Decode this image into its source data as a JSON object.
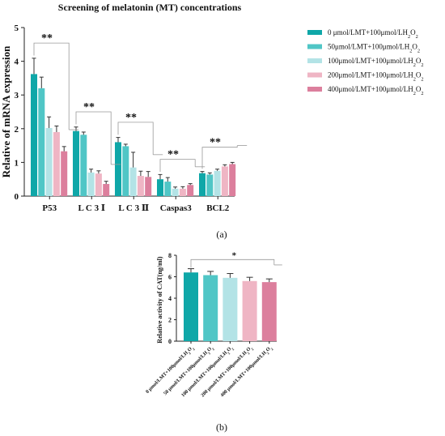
{
  "panel_labels": {
    "a": "(a)",
    "b": "(b)"
  },
  "significance": {
    "double": "**",
    "single": "*"
  },
  "chart_data": [
    {
      "id": "a",
      "type": "bar",
      "title": "Screening of melatonin (MT) concentrations",
      "xlabel": "",
      "ylabel": "Relative of mRNA expression",
      "ylim": [
        0,
        5
      ],
      "yticks": [
        "0",
        "1",
        "2",
        "3",
        "4",
        "5"
      ],
      "categories": [
        "P53",
        "L C 3 Ⅰ",
        "L C 3 Ⅱ",
        "Caspas3",
        "BCL2"
      ],
      "legend_position": "right",
      "series": [
        {
          "name": "0 μmol/LMT+100μmol/LH2O2",
          "color": "#0fa7a8",
          "values": [
            3.62,
            1.93,
            1.6,
            0.5,
            0.68
          ],
          "errors": [
            0.47,
            0.12,
            0.14,
            0.14,
            0.05
          ]
        },
        {
          "name": "50μmol/LMT+100μmol/LH2O2",
          "color": "#50c6c6",
          "values": [
            3.2,
            1.82,
            1.48,
            0.43,
            0.64
          ],
          "errors": [
            0.33,
            0.08,
            0.06,
            0.12,
            0.05
          ]
        },
        {
          "name": "100μmol/LMT+100μmol/LH2O2",
          "color": "#b3e3e6",
          "values": [
            2.02,
            0.7,
            0.85,
            0.22,
            0.75
          ],
          "errors": [
            0.33,
            0.1,
            0.45,
            0.05,
            0.05
          ]
        },
        {
          "name": "200μmol/LMT+100μmol/LH2O2",
          "color": "#efb5c4",
          "values": [
            1.9,
            0.67,
            0.6,
            0.22,
            0.88
          ],
          "errors": [
            0.18,
            0.08,
            0.14,
            0.06,
            0.05
          ]
        },
        {
          "name": "400μmol/LMT+100μmol/LH2O2",
          "color": "#dc7f9d",
          "values": [
            1.33,
            0.36,
            0.57,
            0.33,
            0.95
          ],
          "errors": [
            0.14,
            0.08,
            0.16,
            0.04,
            0.05
          ]
        }
      ]
    },
    {
      "id": "b",
      "type": "bar",
      "title": "",
      "xlabel": "",
      "ylabel": "Relative activity of CAT(ng/ml)",
      "ylim": [
        0,
        8
      ],
      "yticks": [
        "0",
        "2",
        "4",
        "6",
        "8"
      ],
      "categories": [
        "0 μmol/LMT+100μmol/LH2O2",
        "50 μmol/LMT+100μmol/LH2O2",
        "100 μmol/LMT+100μmol/LH2O2",
        "200 μmol/LMT+100μmol/LH2O2",
        "400 μmol/LMT+100μmol/LH2O2"
      ],
      "colors": [
        "#0fa7a8",
        "#50c6c6",
        "#b3e3e6",
        "#efb5c4",
        "#dc7f9d"
      ],
      "values": [
        6.4,
        6.15,
        5.9,
        5.6,
        5.5
      ],
      "errors": [
        0.35,
        0.35,
        0.4,
        0.35,
        0.3
      ]
    }
  ]
}
